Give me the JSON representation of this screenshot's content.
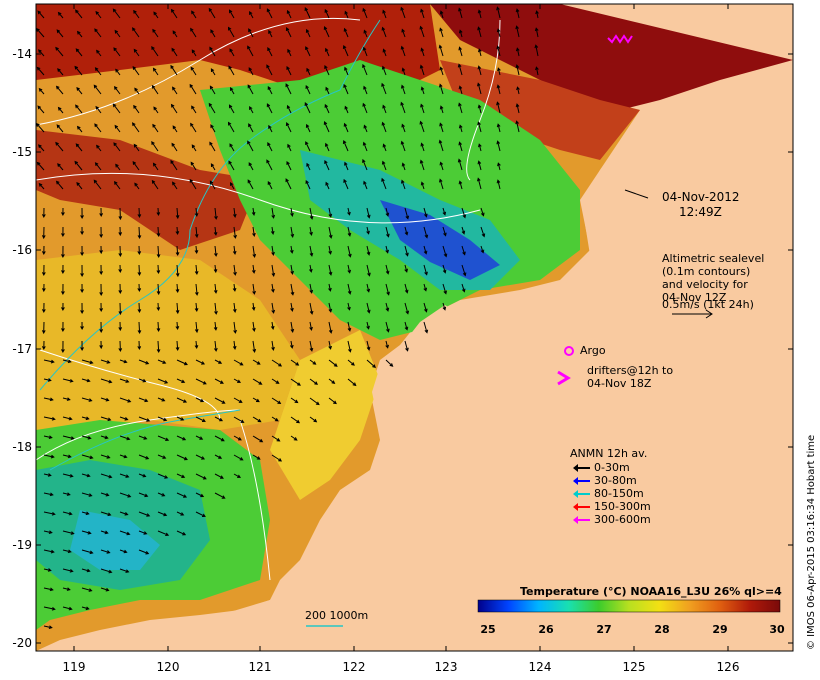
{
  "colors": {
    "land": "#f9caa0",
    "warm": "#b0200a",
    "hot": "#8f0d0d",
    "orange": "#e09a2a",
    "yellow": "#e6d21e",
    "green": "#3fc32f",
    "cyan": "#23b4c7",
    "blue": "#1e3fc9",
    "contour": "#ffffff",
    "bathy": "#27c6c6",
    "argo": "#ff00ff"
  },
  "axes": {
    "lat_ticks": [
      "-14",
      "-15",
      "-16",
      "-17",
      "-18",
      "-19",
      "-20"
    ],
    "lon_ticks": [
      "119",
      "120",
      "121",
      "122",
      "123",
      "124",
      "125",
      "126"
    ]
  },
  "annotations": {
    "date": "04-Nov-2012",
    "time": "12:49Z",
    "altimetry_1": "Altimetric sealevel",
    "altimetry_2": "(0.1m contours)",
    "altimetry_3": "and velocity for",
    "altimetry_4": "04-Nov 12Z",
    "altimetry_5": "0.5m/s (1kt 24h)",
    "argo": "Argo",
    "drifters_1": "drifters@12h to",
    "drifters_2": "04-Nov 18Z",
    "depth_contours": "200  1000m"
  },
  "anmn_legend": {
    "title": "ANMN 12h av.",
    "items": [
      {
        "label": "0-30m",
        "color": "#000000"
      },
      {
        "label": "30-80m",
        "color": "#0000ff"
      },
      {
        "label": "80-150m",
        "color": "#00cccc"
      },
      {
        "label": "150-300m",
        "color": "#ff0000"
      },
      {
        "label": "300-600m",
        "color": "#ff00ff"
      }
    ]
  },
  "colorbar": {
    "title": "Temperature (°C) NOAA16_L3U 26% ql>=4",
    "ticks": [
      "25",
      "26",
      "27",
      "28",
      "29",
      "30"
    ],
    "stops": [
      "#00008b",
      "#0044ff",
      "#00b4ff",
      "#19e0b0",
      "#3ccc2c",
      "#b8e020",
      "#f2e014",
      "#f0a020",
      "#e06010",
      "#b01a0a",
      "#7a0a0a"
    ]
  },
  "credit": "© IMOS 06-Apr-2015 03:16:34 Hobart time"
}
